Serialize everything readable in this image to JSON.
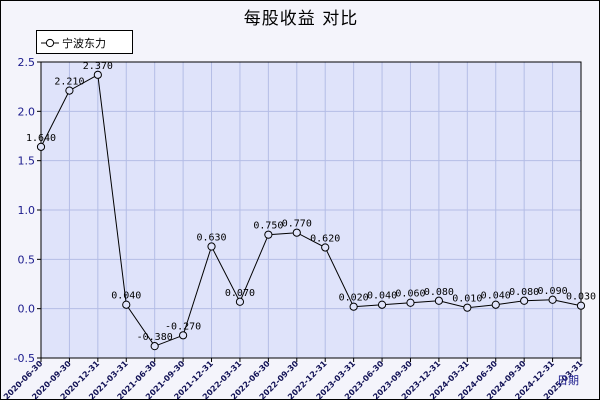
{
  "chart_data": {
    "type": "line",
    "title": "每股收益  对比",
    "xlabel": "日期",
    "ylabel": "",
    "ylim": [
      -0.5,
      2.5
    ],
    "yticks": [
      -0.5,
      0.0,
      0.5,
      1.0,
      1.5,
      2.0,
      2.5
    ],
    "ytick_labels": [
      "-0.5",
      "0.0",
      "0.5",
      "1.0",
      "1.5",
      "2.0",
      "2.5"
    ],
    "grid": true,
    "legend_position": "top-left",
    "categories": [
      "2020-06-30",
      "2020-09-30",
      "2020-12-31",
      "2021-03-31",
      "2021-06-30",
      "2021-09-30",
      "2021-12-31",
      "2022-03-31",
      "2022-06-30",
      "2022-09-30",
      "2022-12-31",
      "2023-03-31",
      "2023-06-30",
      "2023-09-30",
      "2023-12-31",
      "2024-03-31",
      "2024-06-30",
      "2024-09-30",
      "2024-12-31",
      "2025-03-31"
    ],
    "series": [
      {
        "name": "宁波东力",
        "values": [
          1.64,
          2.21,
          2.37,
          0.04,
          -0.38,
          -0.27,
          0.63,
          0.07,
          0.75,
          0.77,
          0.62,
          0.02,
          0.04,
          0.06,
          0.08,
          0.01,
          0.04,
          0.08,
          0.09,
          0.03
        ],
        "labels": [
          "1.640",
          "2.210",
          "2.370",
          "0.040",
          "-0.380",
          "-0.270",
          "0.630",
          "0.070",
          "0.750",
          "0.770",
          "0.620",
          "0.020",
          "0.040",
          "0.060",
          "0.080",
          "0.010",
          "0.040",
          "0.080",
          "0.090",
          "0.030"
        ]
      }
    ],
    "colors": {
      "plot_background": "#dfe3fa",
      "page_background": "#f4f4fb",
      "gridline": "#b4bde6",
      "line": "#000000",
      "tick_label": "#1a1a8c",
      "x_tick_label": "#111155"
    }
  }
}
